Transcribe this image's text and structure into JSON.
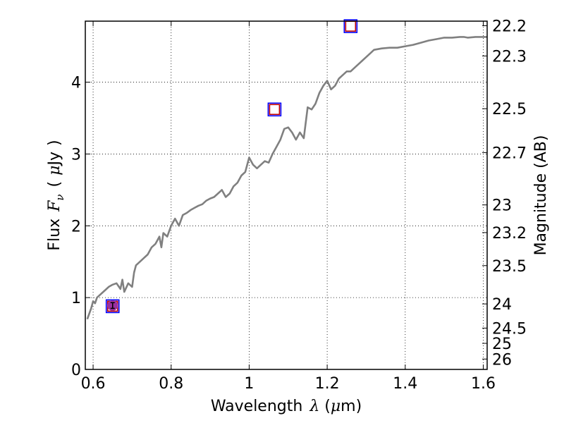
{
  "chart_data": {
    "type": "line",
    "xlabel": "Wavelength",
    "xlabel_symbol": "λ",
    "xlabel_unit_open": " (",
    "xlabel_unit_mu": "μ",
    "xlabel_unit_rest": "m)",
    "ylabel": "Flux",
    "ylabel_symbol": "F",
    "ylabel_subscript": "ν",
    "ylabel_unit_open": "(",
    "ylabel_unit_mu": "μ",
    "ylabel_unit_rest": "Jy",
    "ylabel_unit_close": ")",
    "y2label": "Magnitude (AB)",
    "xlim": [
      0.58,
      1.61
    ],
    "ylim": [
      0,
      4.85
    ],
    "grid": true,
    "x_ticks": [
      0.6,
      0.8,
      1.0,
      1.2,
      1.4,
      1.6
    ],
    "x_tick_labels": [
      "0.6",
      "0.8",
      "1",
      "1.2",
      "1.4",
      "1.6"
    ],
    "y_ticks": [
      0,
      1,
      2,
      3,
      4
    ],
    "y_tick_labels": [
      "0",
      "1",
      "2",
      "3",
      "4"
    ],
    "mag_ticks": [
      22.2,
      22.3,
      22.5,
      22.7,
      23,
      23.2,
      23.5,
      24,
      24.5,
      25,
      26
    ],
    "mag_tick_labels": [
      "22.2",
      "22.3",
      "22.5",
      "22.7",
      "23",
      "23.2",
      "23.5",
      "24",
      "24.5",
      "25",
      "26"
    ],
    "series": [
      {
        "style": "line",
        "color": "#808080",
        "x": [
          0.585,
          0.595,
          0.6,
          0.605,
          0.61,
          0.62,
          0.63,
          0.64,
          0.65,
          0.66,
          0.67,
          0.675,
          0.68,
          0.69,
          0.7,
          0.705,
          0.71,
          0.72,
          0.73,
          0.74,
          0.75,
          0.76,
          0.77,
          0.775,
          0.78,
          0.79,
          0.8,
          0.81,
          0.82,
          0.83,
          0.84,
          0.85,
          0.86,
          0.87,
          0.88,
          0.89,
          0.9,
          0.91,
          0.92,
          0.93,
          0.94,
          0.95,
          0.96,
          0.97,
          0.98,
          0.99,
          1.0,
          1.01,
          1.02,
          1.03,
          1.04,
          1.05,
          1.06,
          1.07,
          1.08,
          1.09,
          1.1,
          1.11,
          1.12,
          1.13,
          1.14,
          1.15,
          1.16,
          1.17,
          1.18,
          1.19,
          1.2,
          1.21,
          1.22,
          1.23,
          1.24,
          1.25,
          1.26,
          1.27,
          1.28,
          1.29,
          1.3,
          1.31,
          1.32,
          1.34,
          1.36,
          1.38,
          1.4,
          1.42,
          1.44,
          1.46,
          1.48,
          1.5,
          1.52,
          1.54,
          1.55,
          1.56,
          1.58,
          1.6,
          1.61
        ],
        "y": [
          0.7,
          0.85,
          0.95,
          0.92,
          1.0,
          1.05,
          1.1,
          1.15,
          1.18,
          1.2,
          1.12,
          1.25,
          1.08,
          1.2,
          1.15,
          1.35,
          1.45,
          1.5,
          1.55,
          1.6,
          1.7,
          1.75,
          1.85,
          1.7,
          1.9,
          1.85,
          2.0,
          2.1,
          2.0,
          2.15,
          2.18,
          2.22,
          2.25,
          2.28,
          2.3,
          2.35,
          2.38,
          2.4,
          2.45,
          2.5,
          2.4,
          2.45,
          2.55,
          2.6,
          2.7,
          2.75,
          2.95,
          2.85,
          2.8,
          2.85,
          2.9,
          2.88,
          3.0,
          3.1,
          3.2,
          3.35,
          3.37,
          3.3,
          3.2,
          3.3,
          3.22,
          3.65,
          3.62,
          3.7,
          3.85,
          3.95,
          4.02,
          3.9,
          3.95,
          4.05,
          4.1,
          4.15,
          4.15,
          4.2,
          4.25,
          4.3,
          4.35,
          4.4,
          4.45,
          4.47,
          4.48,
          4.48,
          4.5,
          4.52,
          4.55,
          4.58,
          4.6,
          4.62,
          4.62,
          4.63,
          4.63,
          4.62,
          4.63,
          4.63,
          4.63
        ]
      },
      {
        "style": "square-marker",
        "color": "#c00000",
        "x": [
          0.65,
          1.065,
          1.26
        ],
        "y": [
          0.88,
          3.62,
          4.78
        ]
      },
      {
        "style": "square-marker",
        "color": "#0000ff",
        "x": [
          0.65,
          1.065,
          1.26
        ],
        "y": [
          0.88,
          3.62,
          4.78
        ]
      },
      {
        "style": "filled-circle-marker",
        "color": "#9b30a0",
        "x": [
          0.65
        ],
        "y": [
          0.89
        ],
        "error": [
          0.04
        ]
      }
    ]
  }
}
